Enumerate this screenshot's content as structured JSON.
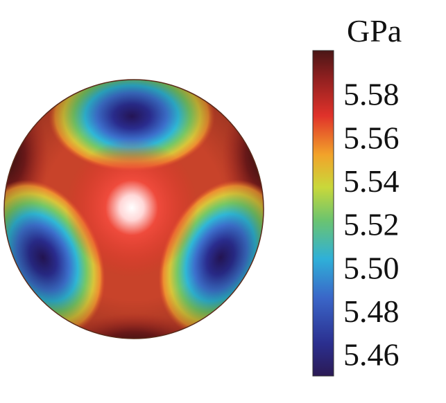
{
  "chart_data": {
    "type": "heatmap",
    "projection": "sphere",
    "colorbar": {
      "unit": "GPa",
      "range": [
        5.45,
        5.6
      ],
      "ticks": [
        5.58,
        5.56,
        5.54,
        5.52,
        5.5,
        5.48,
        5.46
      ],
      "tick_labels": [
        "5.58",
        "5.56",
        "5.54",
        "5.52",
        "5.50",
        "5.48",
        "5.46"
      ],
      "colors": [
        "#2b1a55",
        "#2b2f8f",
        "#3a66c8",
        "#2fb0d8",
        "#6cc46e",
        "#c9d83a",
        "#f2a32a",
        "#e0322a",
        "#8c1f1f",
        "#4a1616"
      ],
      "placement": "right"
    },
    "features": {
      "minima": [
        {
          "label": "top",
          "value": 5.45
        },
        {
          "label": "lower-left",
          "value": 5.45
        },
        {
          "label": "lower-right",
          "value": 5.45
        }
      ],
      "maximum": {
        "label": "center",
        "value": 5.6
      },
      "rim_highs_value": 5.6
    }
  }
}
